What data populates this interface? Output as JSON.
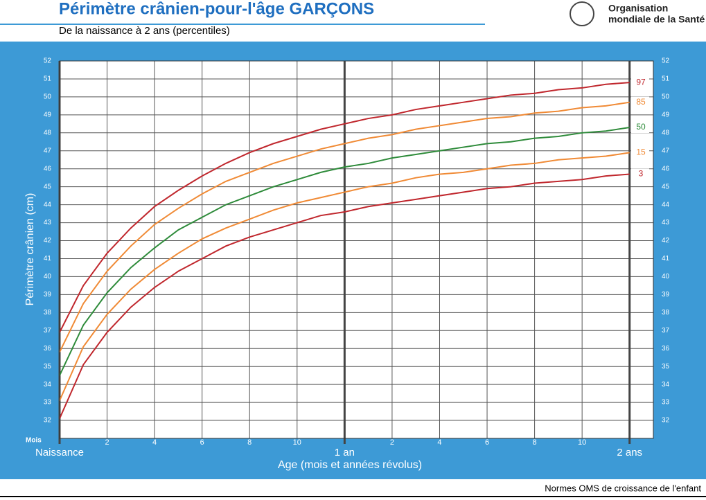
{
  "chart_data": {
    "type": "line",
    "title": "Périmètre crânien-pour-l'âge  GARÇONS",
    "subtitle": "De la naissance à 2 ans (percentiles)",
    "y_label": "Périmètre crânien (cm)",
    "x_label": "Age (mois et années révolus)",
    "x_unit_label": "Mois",
    "x": [
      0,
      1,
      2,
      3,
      4,
      5,
      6,
      7,
      8,
      9,
      10,
      11,
      12,
      13,
      14,
      15,
      16,
      17,
      18,
      19,
      20,
      21,
      22,
      23,
      24
    ],
    "xlim": [
      0,
      25
    ],
    "xticks": [
      2,
      4,
      6,
      8,
      10,
      {
        "value": 14,
        "label": "2"
      },
      {
        "value": 16,
        "label": "4"
      },
      {
        "value": 18,
        "label": "6"
      },
      {
        "value": 20,
        "label": "8"
      },
      {
        "value": 22,
        "label": "10"
      }
    ],
    "year_ticks": [
      {
        "value": 0,
        "label": "Naissance"
      },
      {
        "value": 12,
        "label": "1 an"
      },
      {
        "value": 24,
        "label": "2 ans"
      }
    ],
    "ylim": [
      31,
      52
    ],
    "yticks": [
      32,
      33,
      34,
      35,
      36,
      37,
      38,
      39,
      40,
      41,
      42,
      43,
      44,
      45,
      46,
      47,
      48,
      49,
      50,
      51,
      52
    ],
    "grid": true,
    "series": [
      {
        "name": "97",
        "color": "#c0272d",
        "values": [
          36.9,
          39.5,
          41.3,
          42.7,
          43.9,
          44.8,
          45.6,
          46.3,
          46.9,
          47.4,
          47.8,
          48.2,
          48.5,
          48.8,
          49.0,
          49.3,
          49.5,
          49.7,
          49.9,
          50.1,
          50.2,
          50.4,
          50.5,
          50.7,
          50.8
        ]
      },
      {
        "name": "85",
        "color": "#f08a35",
        "values": [
          35.8,
          38.5,
          40.3,
          41.7,
          42.9,
          43.8,
          44.6,
          45.3,
          45.8,
          46.3,
          46.7,
          47.1,
          47.4,
          47.7,
          47.9,
          48.2,
          48.4,
          48.6,
          48.8,
          48.9,
          49.1,
          49.2,
          49.4,
          49.5,
          49.7
        ]
      },
      {
        "name": "50",
        "color": "#2e8b3a",
        "values": [
          34.5,
          37.3,
          39.1,
          40.5,
          41.6,
          42.6,
          43.3,
          44.0,
          44.5,
          45.0,
          45.4,
          45.8,
          46.1,
          46.3,
          46.6,
          46.8,
          47.0,
          47.2,
          47.4,
          47.5,
          47.7,
          47.8,
          48.0,
          48.1,
          48.3
        ]
      },
      {
        "name": "15",
        "color": "#f08a35",
        "values": [
          33.1,
          36.1,
          37.9,
          39.3,
          40.4,
          41.3,
          42.1,
          42.7,
          43.2,
          43.7,
          44.1,
          44.4,
          44.7,
          45.0,
          45.2,
          45.5,
          45.7,
          45.8,
          46.0,
          46.2,
          46.3,
          46.5,
          46.6,
          46.7,
          46.9
        ]
      },
      {
        "name": "3",
        "color": "#c0272d",
        "values": [
          32.1,
          35.1,
          36.9,
          38.3,
          39.4,
          40.3,
          41.0,
          41.7,
          42.2,
          42.6,
          43.0,
          43.4,
          43.6,
          43.9,
          44.1,
          44.3,
          44.5,
          44.7,
          44.9,
          45.0,
          45.2,
          45.3,
          45.4,
          45.6,
          45.7
        ]
      }
    ]
  },
  "logo": {
    "line1": "Organisation",
    "line2": "mondiale de la Santé"
  },
  "footer": "Normes OMS de croissance de l'enfant"
}
